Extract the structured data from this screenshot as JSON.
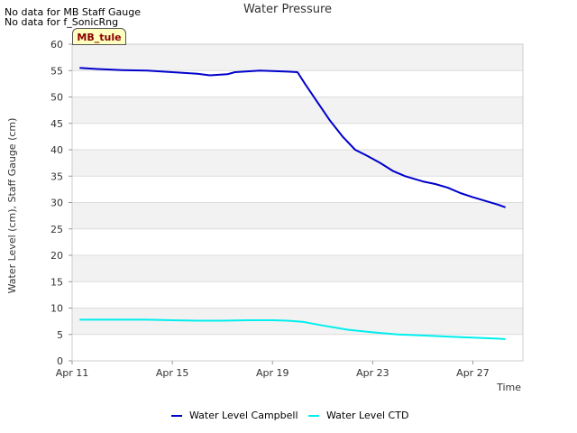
{
  "notes": [
    "No data for MB Staff Gauge",
    "No data for f_SonicRng"
  ],
  "site_label": "MB_tule",
  "colors": {
    "campbell": "#0000cc",
    "ctd": "#00eeee",
    "band": "#f2f2f2",
    "grid": "#dddddd"
  },
  "chart_data": {
    "type": "line",
    "title": "Water Pressure",
    "xlabel": "Time",
    "ylabel": "Water Level (cm), Staff Gauge (cm)",
    "ylim": [
      0,
      60
    ],
    "yticks": [
      0,
      5,
      10,
      15,
      20,
      25,
      30,
      35,
      40,
      45,
      50,
      55,
      60
    ],
    "xlim": [
      11.0,
      29.0
    ],
    "xticks": [
      {
        "pos": 11,
        "label": "Apr 11"
      },
      {
        "pos": 15,
        "label": "Apr 15"
      },
      {
        "pos": 19,
        "label": "Apr 19"
      },
      {
        "pos": 23,
        "label": "Apr 23"
      },
      {
        "pos": 27,
        "label": "Apr 27"
      }
    ],
    "grid": true,
    "legend": "bottom",
    "series": [
      {
        "name": "Water Level Campbell",
        "color": "#0000cc",
        "x": [
          11.3,
          12.0,
          13.0,
          14.0,
          15.0,
          16.0,
          16.5,
          17.2,
          17.5,
          18.5,
          19.0,
          19.6,
          20.0,
          20.3,
          20.8,
          21.3,
          21.8,
          22.3,
          22.8,
          23.3,
          23.8,
          24.3,
          25.0,
          25.5,
          26.0,
          26.5,
          27.0,
          27.5,
          28.0,
          28.3
        ],
        "y": [
          55.5,
          55.3,
          55.1,
          55.0,
          54.7,
          54.4,
          54.1,
          54.3,
          54.7,
          55.0,
          54.9,
          54.8,
          54.7,
          52.5,
          49.0,
          45.5,
          42.5,
          40.0,
          38.8,
          37.5,
          36.0,
          35.0,
          34.0,
          33.5,
          32.8,
          31.8,
          31.0,
          30.3,
          29.6,
          29.1
        ]
      },
      {
        "name": "Water Level CTD",
        "color": "#00eeee",
        "x": [
          11.3,
          12.0,
          13.0,
          14.0,
          15.0,
          16.0,
          17.0,
          18.0,
          19.0,
          19.6,
          20.2,
          21.0,
          22.0,
          23.0,
          24.0,
          25.0,
          26.0,
          27.0,
          28.0,
          28.3
        ],
        "y": [
          7.8,
          7.8,
          7.8,
          7.8,
          7.7,
          7.6,
          7.6,
          7.7,
          7.7,
          7.6,
          7.4,
          6.7,
          5.9,
          5.4,
          5.0,
          4.8,
          4.6,
          4.4,
          4.2,
          4.1
        ]
      }
    ]
  }
}
